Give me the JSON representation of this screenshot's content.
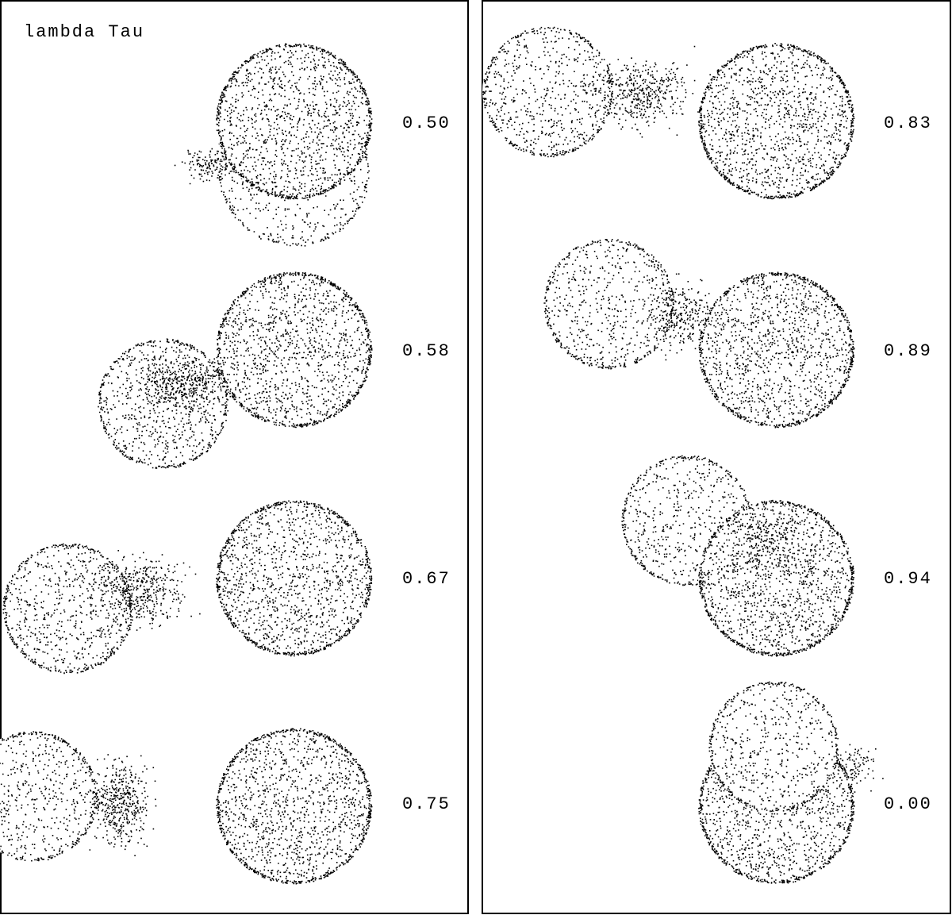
{
  "title": "lambda Tau",
  "phases": [
    "0.50",
    "0.58",
    "0.67",
    "0.75",
    "0.83",
    "0.89",
    "0.94",
    "0.00"
  ]
}
